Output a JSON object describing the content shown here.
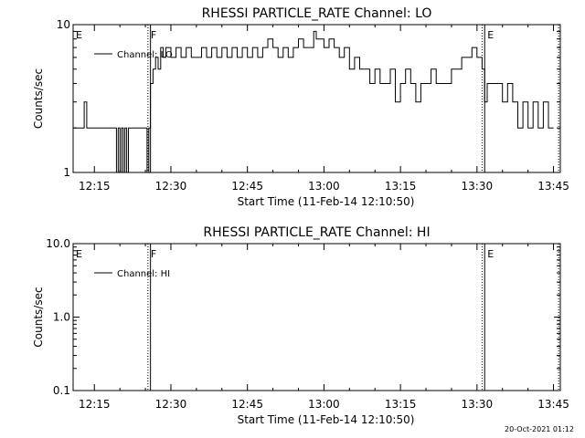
{
  "footer": {
    "timestamp": "20-Oct-2021 01:12"
  },
  "chart_data": [
    {
      "type": "line",
      "title": "RHESSI PARTICLE_RATE Channel: LO",
      "xlabel": "Start Time (11-Feb-14 12:10:50)",
      "ylabel": "Counts/sec",
      "yscale": "log",
      "xlim_minutes_after_start": [
        0,
        95.5
      ],
      "ylim": [
        1,
        10
      ],
      "x_ticks": [
        "12:15",
        "12:30",
        "12:45",
        "13:00",
        "13:15",
        "13:30",
        "13:45"
      ],
      "y_ticks": [
        "1",
        "10"
      ],
      "legend": "Channel: LO",
      "legend_position": "top-left",
      "markers": [
        {
          "label": "E",
          "time": "12:10:50",
          "style": "none"
        },
        {
          "label": "F",
          "time": "12:25:30",
          "style": "dotted"
        },
        {
          "label": "",
          "time": "12:26:00",
          "style": "solid"
        },
        {
          "label": "E",
          "time": "13:31:30",
          "style": "solid"
        },
        {
          "label": "",
          "time": "13:31:00",
          "style": "dotted"
        },
        {
          "label": "",
          "time": "13:46:00",
          "style": "dotted"
        }
      ],
      "series": [
        {
          "name": "Channel: LO",
          "times": [
            "12:10:50",
            "12:12:30",
            "12:13:00",
            "12:13:30",
            "12:14:00",
            "12:19:00",
            "12:19:20",
            "12:19:40",
            "12:20:00",
            "12:20:20",
            "12:20:40",
            "12:21:00",
            "12:21:20",
            "12:21:40",
            "12:22:00",
            "12:25:00",
            "12:25:20",
            "12:25:40",
            "12:26:00",
            "12:26:30",
            "12:27:00",
            "12:27:30",
            "12:28:00",
            "12:28:30",
            "12:29:00",
            "12:30:00",
            "12:31:00",
            "12:32:00",
            "12:33:00",
            "12:34:00",
            "12:35:00",
            "12:36:00",
            "12:37:00",
            "12:38:00",
            "12:39:00",
            "12:40:00",
            "12:41:00",
            "12:42:00",
            "12:43:00",
            "12:44:00",
            "12:45:00",
            "12:46:00",
            "12:47:00",
            "12:48:00",
            "12:49:00",
            "12:50:00",
            "12:51:00",
            "12:52:00",
            "12:53:00",
            "12:54:00",
            "12:55:00",
            "12:56:00",
            "12:57:00",
            "12:58:00",
            "12:58:30",
            "12:59:00",
            "13:00:00",
            "13:01:00",
            "13:02:00",
            "13:03:00",
            "13:04:00",
            "13:05:00",
            "13:06:00",
            "13:07:00",
            "13:08:00",
            "13:09:00",
            "13:10:00",
            "13:11:00",
            "13:12:00",
            "13:13:00",
            "13:14:00",
            "13:15:00",
            "13:16:00",
            "13:17:00",
            "13:18:00",
            "13:19:00",
            "13:20:00",
            "13:21:00",
            "13:22:00",
            "13:23:00",
            "13:24:00",
            "13:25:00",
            "13:26:00",
            "13:27:00",
            "13:28:00",
            "13:29:00",
            "13:30:00",
            "13:30:30",
            "13:31:00",
            "13:31:30",
            "13:32:00",
            "13:32:30",
            "13:33:00",
            "13:34:00",
            "13:35:00",
            "13:36:00",
            "13:37:00",
            "13:38:00",
            "13:39:00",
            "13:40:00",
            "13:41:00",
            "13:42:00",
            "13:43:00",
            "13:44:00",
            "13:45:00"
          ],
          "values": [
            2,
            2,
            3,
            2,
            2,
            2,
            1,
            2,
            1,
            2,
            1,
            2,
            1,
            2,
            2,
            2,
            1,
            2,
            4,
            5,
            6,
            5,
            7,
            6,
            7,
            6,
            7,
            6,
            7,
            6,
            6,
            7,
            6,
            7,
            6,
            7,
            6,
            7,
            6,
            7,
            6,
            7,
            6,
            7,
            8,
            7,
            6,
            7,
            6,
            7,
            8,
            7,
            7,
            9,
            8,
            8,
            7,
            8,
            7,
            6,
            7,
            5,
            6,
            5,
            5,
            4,
            5,
            4,
            4,
            5,
            3,
            4,
            5,
            4,
            3,
            4,
            4,
            5,
            4,
            4,
            4,
            5,
            5,
            6,
            6,
            7,
            6,
            6,
            5,
            3,
            4,
            4,
            4,
            4,
            3,
            4,
            3,
            2,
            3,
            2,
            3,
            2,
            3,
            2,
            2
          ]
        }
      ]
    },
    {
      "type": "line",
      "title": "RHESSI PARTICLE_RATE Channel: HI",
      "xlabel": "Start Time (11-Feb-14 12:10:50)",
      "ylabel": "Counts/sec",
      "yscale": "log",
      "xlim_minutes_after_start": [
        0,
        95.5
      ],
      "ylim": [
        0.1,
        10
      ],
      "x_ticks": [
        "12:15",
        "12:30",
        "12:45",
        "13:00",
        "13:15",
        "13:30",
        "13:45"
      ],
      "y_ticks": [
        "0.1",
        "1.0",
        "10.0"
      ],
      "legend": "Channel: HI",
      "legend_position": "top-left",
      "markers": [
        {
          "label": "E",
          "time": "12:10:50",
          "style": "none"
        },
        {
          "label": "F",
          "time": "12:25:30",
          "style": "dotted"
        },
        {
          "label": "",
          "time": "12:26:00",
          "style": "solid"
        },
        {
          "label": "E",
          "time": "13:31:30",
          "style": "solid"
        },
        {
          "label": "",
          "time": "13:31:00",
          "style": "dotted"
        },
        {
          "label": "",
          "time": "13:46:00",
          "style": "dotted"
        }
      ],
      "series": [
        {
          "name": "Channel: HI",
          "times": [],
          "values": []
        }
      ]
    }
  ]
}
